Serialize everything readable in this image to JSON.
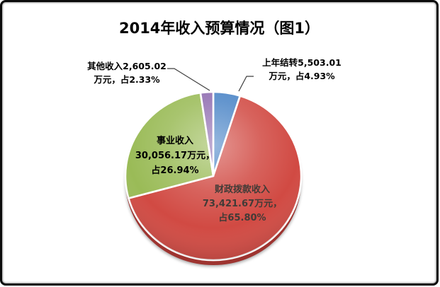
{
  "chart_data": {
    "type": "pie",
    "title": "2014年收入预算情况（图1）",
    "unit": "万元",
    "legend_position": "none",
    "direction": "clockwise",
    "start_angle_deg": 0,
    "depth_color": "#9E3430",
    "leader_line_color": "#3f3f3f",
    "total_percent": 100,
    "slices": [
      {
        "id": "carryover",
        "name": "上年结转",
        "value": 5503.01,
        "percent": 4.93,
        "color": "#4A84C6",
        "label_lines": [
          "上年结转5,503.01",
          "万元，占4.93%"
        ]
      },
      {
        "id": "fiscal-appropriation",
        "name": "财政拨款收入",
        "value": 73421.67,
        "percent": 65.8,
        "color": "#D14A43",
        "label_lines": [
          "财政拨款收入",
          "73,421.67万元，",
          "占65.80%"
        ]
      },
      {
        "id": "business-income",
        "name": "事业收入",
        "value": 30056.17,
        "percent": 26.94,
        "color": "#9ABB57",
        "label_lines": [
          "事业收入",
          "30,056.17万元，",
          "占26.94%"
        ]
      },
      {
        "id": "other-income",
        "name": "其他收入",
        "value": 2605.02,
        "percent": 2.33,
        "color": "#8F6CB0",
        "label_lines": [
          "其他收入2,605.02",
          "万元，占2.33%"
        ]
      }
    ]
  }
}
